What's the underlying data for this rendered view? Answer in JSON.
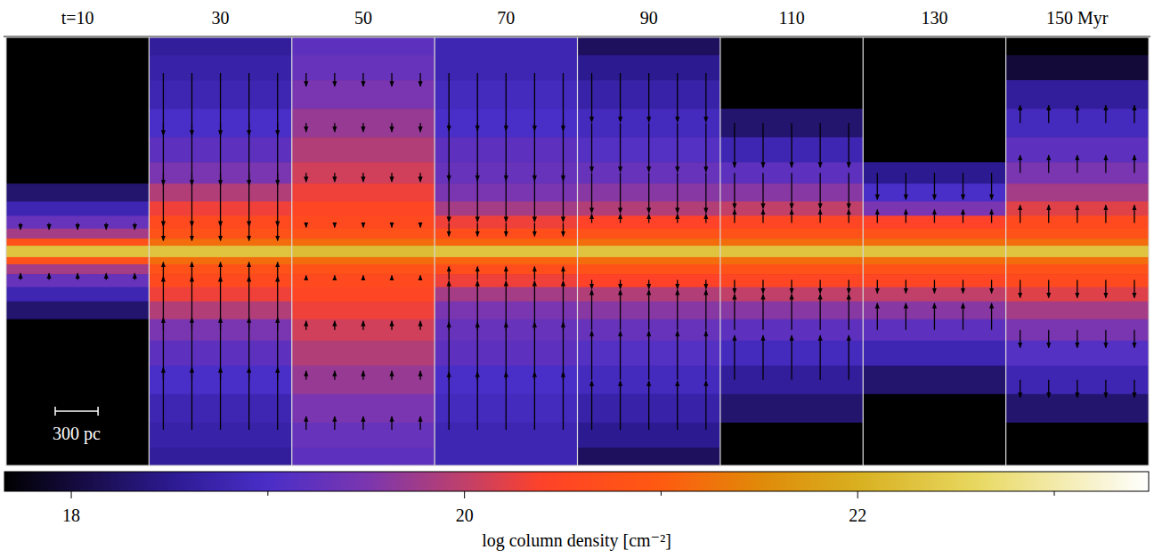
{
  "chart_data": {
    "type": "heatmap",
    "xlim": [
      -500,
      500
    ],
    "ylim": [
      -1500,
      1500
    ],
    "z": [
      1450,
      1300,
      1100,
      900,
      700,
      550,
      400,
      300,
      200,
      120,
      60,
      20,
      -20,
      -60,
      -120,
      -200,
      -300,
      -400,
      -550,
      -700,
      -900,
      -1100,
      -1300,
      -1450
    ],
    "arrow_x": [
      -400,
      -200,
      0,
      200,
      400
    ],
    "arrow_z": [
      1250,
      900,
      550,
      200,
      -200,
      -550,
      -900,
      -1250
    ],
    "panels": [
      {
        "title": "t=10",
        "log_column_density": [
          17.5,
          17.5,
          17.5,
          17.5,
          17.5,
          17.5,
          18.3,
          18.8,
          19.3,
          19.8,
          20.8,
          22.3,
          22.3,
          20.8,
          19.8,
          19.3,
          18.8,
          18.3,
          17.5,
          17.5,
          17.5,
          17.5,
          17.5,
          17.5
        ],
        "vz": [
          0,
          0,
          0,
          -15,
          15,
          0,
          0,
          0
        ]
      },
      {
        "title": "30",
        "log_column_density": [
          18.6,
          18.7,
          18.8,
          19.0,
          19.2,
          19.5,
          19.9,
          20.3,
          20.6,
          20.8,
          21.2,
          22.3,
          22.3,
          21.2,
          20.8,
          20.6,
          20.3,
          19.9,
          19.5,
          19.2,
          19.0,
          18.8,
          18.7,
          18.6
        ],
        "vz": [
          -140,
          -140,
          -120,
          -40,
          40,
          120,
          140,
          140
        ]
      },
      {
        "title": "50",
        "log_column_density": [
          19.2,
          19.3,
          19.5,
          19.7,
          19.9,
          20.1,
          20.3,
          20.5,
          20.6,
          20.8,
          21.2,
          22.2,
          22.2,
          21.2,
          20.8,
          20.6,
          20.5,
          20.3,
          20.1,
          19.9,
          19.7,
          19.5,
          19.3,
          19.2
        ],
        "vz": [
          -30,
          -20,
          -20,
          -10,
          10,
          20,
          20,
          30
        ]
      },
      {
        "title": "70",
        "log_column_density": [
          18.8,
          18.8,
          18.9,
          19.0,
          19.2,
          19.3,
          19.5,
          19.8,
          20.3,
          20.7,
          21.1,
          22.3,
          22.3,
          21.1,
          20.7,
          20.3,
          19.8,
          19.5,
          19.3,
          19.2,
          19.0,
          18.9,
          18.8,
          18.8
        ],
        "vz": [
          -130,
          -130,
          -110,
          -30,
          30,
          110,
          130,
          130
        ]
      },
      {
        "title": "90",
        "log_column_density": [
          18.2,
          18.5,
          18.7,
          18.9,
          19.1,
          19.3,
          19.6,
          19.9,
          20.4,
          20.8,
          21.2,
          22.3,
          22.3,
          21.2,
          20.8,
          20.4,
          19.9,
          19.6,
          19.3,
          19.1,
          18.9,
          18.7,
          18.5,
          18.2
        ],
        "vz": [
          -110,
          -110,
          -90,
          20,
          -20,
          90,
          110,
          110
        ]
      },
      {
        "title": "110",
        "log_column_density": [
          17.5,
          17.5,
          17.5,
          18.3,
          18.8,
          19.2,
          19.6,
          20.0,
          20.5,
          20.8,
          21.2,
          22.3,
          22.3,
          21.2,
          20.8,
          20.5,
          20.0,
          19.6,
          19.2,
          18.9,
          18.6,
          18.3,
          17.5,
          17.5
        ],
        "vz": [
          0,
          -100,
          -80,
          30,
          -30,
          80,
          100,
          0
        ]
      },
      {
        "title": "130",
        "log_column_density": [
          17.5,
          17.5,
          17.5,
          17.5,
          17.5,
          18.5,
          19.0,
          19.5,
          20.4,
          20.8,
          21.2,
          22.3,
          22.3,
          21.2,
          20.8,
          20.5,
          20.0,
          19.6,
          19.2,
          18.8,
          18.3,
          17.5,
          17.5,
          17.5
        ],
        "vz": [
          0,
          0,
          -60,
          30,
          -30,
          60,
          0,
          0
        ]
      },
      {
        "title": "150 Myr",
        "log_column_density": [
          17.5,
          18.0,
          18.6,
          18.9,
          19.2,
          19.5,
          19.8,
          20.2,
          20.6,
          20.8,
          21.2,
          22.3,
          22.3,
          21.2,
          20.8,
          20.6,
          20.2,
          19.8,
          19.5,
          19.1,
          18.8,
          18.3,
          17.5,
          17.5
        ],
        "vz": [
          0,
          40,
          40,
          40,
          -40,
          -40,
          -40,
          0
        ]
      }
    ],
    "scale_bar": {
      "length": 300,
      "label": "300 pc"
    },
    "colorbar": {
      "lim": [
        17.66,
        23.48
      ],
      "ticks": [
        18,
        20,
        22
      ],
      "minor_ticks": [
        19,
        21,
        23
      ],
      "label": "log column density [cm⁻²]"
    }
  }
}
